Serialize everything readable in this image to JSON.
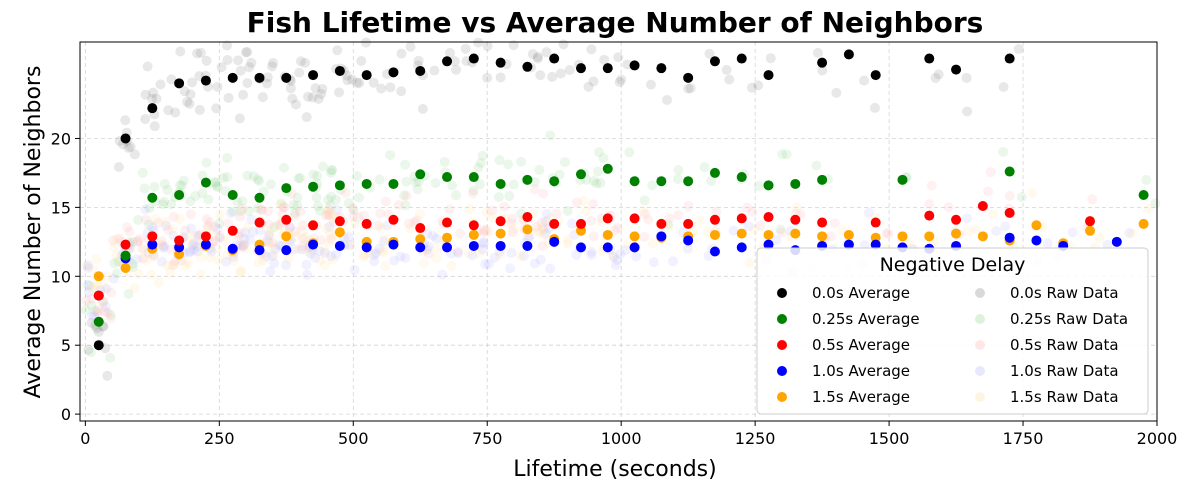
{
  "chart_data": {
    "type": "scatter",
    "title": "Fish Lifetime vs Average Number of Neighbors",
    "xlabel": "Lifetime (seconds)",
    "ylabel": "Average Number of Neighbors",
    "xlim": [
      -10,
      2000
    ],
    "ylim": [
      -0.5,
      27
    ],
    "xticks": [
      0,
      250,
      500,
      750,
      1000,
      1250,
      1500,
      1750,
      2000
    ],
    "yticks": [
      0,
      5,
      10,
      15,
      20
    ],
    "grid": true,
    "legend": {
      "title": "Negative Delay",
      "placement": "lower-right",
      "columns": 2
    },
    "series": [
      {
        "name": "0.0s Average",
        "color": "#000000",
        "x": [
          25,
          75,
          125,
          175,
          225,
          275,
          325,
          375,
          425,
          475,
          525,
          575,
          625,
          675,
          725,
          775,
          825,
          875,
          925,
          975,
          1025,
          1075,
          1125,
          1175,
          1225,
          1275,
          1375,
          1425,
          1475,
          1575,
          1625,
          1725
        ],
        "y": [
          5.0,
          20.0,
          22.2,
          24.0,
          24.2,
          24.4,
          24.4,
          24.4,
          24.6,
          24.9,
          24.6,
          24.8,
          24.9,
          25.6,
          25.8,
          25.5,
          25.2,
          25.8,
          25.1,
          25.1,
          25.3,
          25.1,
          24.4,
          25.6,
          25.8,
          24.6,
          25.5,
          26.1,
          24.6,
          25.8,
          25.0,
          25.8
        ]
      },
      {
        "name": "0.25s Average",
        "color": "#008000",
        "x": [
          25,
          75,
          125,
          175,
          225,
          275,
          325,
          375,
          425,
          475,
          525,
          575,
          625,
          675,
          725,
          775,
          825,
          875,
          925,
          975,
          1025,
          1075,
          1125,
          1175,
          1225,
          1275,
          1325,
          1375,
          1525,
          1725,
          1975
        ],
        "y": [
          6.7,
          11.5,
          15.7,
          15.9,
          16.8,
          15.9,
          15.7,
          16.4,
          16.5,
          16.6,
          16.7,
          16.7,
          17.4,
          17.2,
          17.2,
          16.7,
          17.0,
          16.9,
          17.4,
          17.8,
          16.9,
          16.9,
          16.9,
          17.5,
          17.2,
          16.6,
          16.7,
          17.0,
          17.0,
          17.6,
          15.9
        ]
      },
      {
        "name": "0.5s Average",
        "color": "#ff0000",
        "x": [
          25,
          75,
          125,
          175,
          225,
          275,
          325,
          375,
          425,
          475,
          525,
          575,
          625,
          675,
          725,
          775,
          825,
          875,
          925,
          975,
          1025,
          1075,
          1125,
          1175,
          1225,
          1275,
          1325,
          1375,
          1475,
          1575,
          1625,
          1675,
          1725,
          1875
        ],
        "y": [
          8.6,
          12.3,
          12.9,
          12.6,
          12.9,
          13.3,
          13.9,
          14.1,
          13.7,
          14.0,
          13.8,
          14.1,
          13.5,
          13.9,
          13.7,
          14.0,
          14.3,
          13.8,
          13.8,
          14.2,
          14.2,
          13.8,
          13.8,
          14.1,
          14.2,
          14.3,
          14.1,
          13.9,
          13.9,
          14.4,
          14.1,
          15.1,
          14.6,
          14.0
        ]
      },
      {
        "name": "1.0s Average",
        "color": "#0000ff",
        "x": [
          25,
          75,
          125,
          175,
          225,
          275,
          325,
          375,
          425,
          475,
          525,
          575,
          625,
          675,
          725,
          775,
          825,
          875,
          925,
          975,
          1025,
          1075,
          1125,
          1175,
          1225,
          1275,
          1325,
          1375,
          1425,
          1475,
          1525,
          1575,
          1625,
          1725,
          1775,
          1825,
          1925
        ],
        "y": [
          8.6,
          11.3,
          12.3,
          12.1,
          12.3,
          12.0,
          11.9,
          11.9,
          12.3,
          12.2,
          12.1,
          12.3,
          12.1,
          12.1,
          12.2,
          12.2,
          12.2,
          12.5,
          12.1,
          12.1,
          12.1,
          12.9,
          12.6,
          11.8,
          12.1,
          12.3,
          11.9,
          12.2,
          12.3,
          12.3,
          12.1,
          12.0,
          12.2,
          12.8,
          12.6,
          12.2,
          12.5
        ]
      },
      {
        "name": "1.5s Average",
        "color": "#ffa500",
        "x": [
          25,
          75,
          125,
          175,
          225,
          275,
          325,
          375,
          425,
          475,
          525,
          575,
          625,
          675,
          725,
          775,
          825,
          875,
          925,
          975,
          1025,
          1075,
          1125,
          1175,
          1225,
          1275,
          1325,
          1375,
          1425,
          1475,
          1525,
          1575,
          1625,
          1675,
          1725,
          1775,
          1825,
          1875,
          1975
        ],
        "y": [
          10.0,
          10.6,
          12.0,
          11.6,
          12.2,
          11.9,
          12.3,
          12.9,
          12.4,
          13.2,
          12.5,
          12.5,
          12.7,
          12.8,
          13.0,
          13.1,
          13.4,
          12.7,
          13.3,
          13.0,
          12.9,
          12.8,
          12.9,
          13.0,
          13.1,
          13.0,
          13.1,
          12.9,
          13.0,
          12.8,
          12.9,
          12.9,
          13.1,
          12.9,
          12.6,
          13.7,
          12.4,
          13.3,
          13.8
        ]
      },
      {
        "name": "0.0s Raw Data",
        "color": "#808080",
        "raw_for": "0.0s Average",
        "spread": 1.9
      },
      {
        "name": "0.25s Raw Data",
        "color": "#90d090",
        "raw_for": "0.25s Average",
        "spread": 1.8
      },
      {
        "name": "0.5s Raw Data",
        "color": "#ffb0b0",
        "raw_for": "0.5s Average",
        "spread": 1.5
      },
      {
        "name": "1.0s Raw Data",
        "color": "#b0b0ff",
        "raw_for": "1.0s Average",
        "spread": 1.5
      },
      {
        "name": "1.5s Raw Data",
        "color": "#ffdca0",
        "raw_for": "1.5s Average",
        "spread": 1.5
      }
    ]
  }
}
